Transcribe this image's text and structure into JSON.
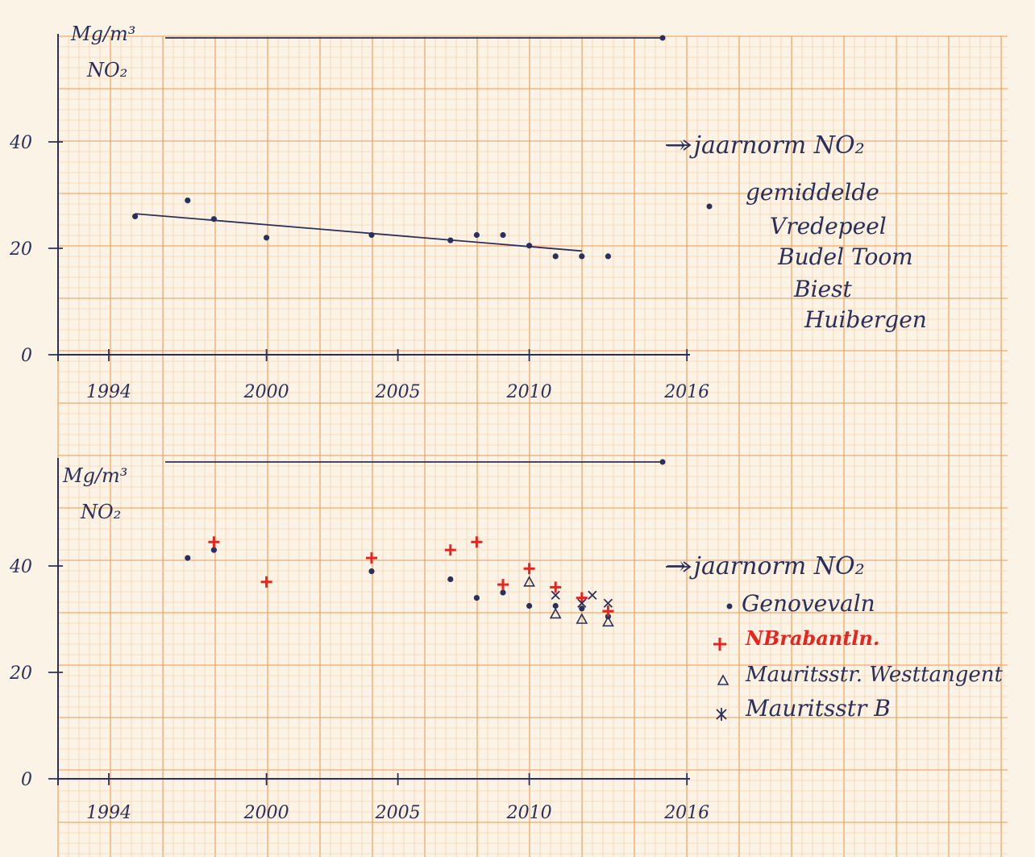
{
  "colors": {
    "paper": "#fbf3e6",
    "grid_minor": "#f6c99a",
    "grid_major": "#ef9a4d",
    "ink": "#2b2f5a",
    "red": "#e8241f"
  },
  "chart_data": [
    {
      "type": "scatter",
      "unit_label": "Mg/m³",
      "quantity_label": "NO₂",
      "x_ticks": [
        "1994",
        "2000",
        "2005",
        "2010",
        "2016"
      ],
      "y_ticks": [
        "0",
        "20",
        "40"
      ],
      "xlim": [
        1992,
        2016
      ],
      "ylim": [
        0,
        60
      ],
      "norm": {
        "value": 60,
        "label": "→ jaarnorm NO₂"
      },
      "legend_lines": [
        "gemiddelde",
        "Vredepeel",
        "Budel Toom",
        "Biest",
        "Huibergen"
      ],
      "series": [
        {
          "marker": "dot",
          "points": [
            {
              "x": 1995,
              "y": 26
            },
            {
              "x": 1997,
              "y": 29
            },
            {
              "x": 1998,
              "y": 25.5
            },
            {
              "x": 2000,
              "y": 22
            },
            {
              "x": 2004,
              "y": 22.5
            },
            {
              "x": 2007,
              "y": 21.5
            },
            {
              "x": 2008,
              "y": 22.5
            },
            {
              "x": 2009,
              "y": 22.5
            },
            {
              "x": 2010,
              "y": 20.5
            },
            {
              "x": 2011,
              "y": 18.5
            },
            {
              "x": 2012,
              "y": 18.5
            },
            {
              "x": 2013,
              "y": 18.5
            }
          ]
        }
      ],
      "trendline": [
        {
          "x": 1995,
          "y": 26.5
        },
        {
          "x": 2012,
          "y": 19.5
        }
      ]
    },
    {
      "type": "scatter",
      "unit_label": "Mg/m³",
      "quantity_label": "NO₂",
      "x_ticks": [
        "1994",
        "2000",
        "2005",
        "2010",
        "2016"
      ],
      "y_ticks": [
        "0",
        "20",
        "40"
      ],
      "xlim": [
        1992,
        2016
      ],
      "ylim": [
        0,
        60
      ],
      "norm": {
        "value": 60,
        "label": "→ jaarnorm NO₂"
      },
      "series": [
        {
          "name": "Genovevaln",
          "marker": "dot",
          "points": [
            {
              "x": 1997,
              "y": 41.5
            },
            {
              "x": 1998,
              "y": 43
            },
            {
              "x": 2004,
              "y": 39
            },
            {
              "x": 2007,
              "y": 37.5
            },
            {
              "x": 2008,
              "y": 34
            },
            {
              "x": 2009,
              "y": 35
            },
            {
              "x": 2010,
              "y": 32.5
            },
            {
              "x": 2011,
              "y": 32.5
            },
            {
              "x": 2012,
              "y": 32
            },
            {
              "x": 2013,
              "y": 30.5
            }
          ]
        },
        {
          "name": "NBrabantln.",
          "marker": "plus",
          "points": [
            {
              "x": 1998,
              "y": 44.5
            },
            {
              "x": 2000,
              "y": 37
            },
            {
              "x": 2004,
              "y": 41.5
            },
            {
              "x": 2007,
              "y": 43
            },
            {
              "x": 2008,
              "y": 44.5
            },
            {
              "x": 2009,
              "y": 36.5
            },
            {
              "x": 2010,
              "y": 39.5
            },
            {
              "x": 2011,
              "y": 36
            },
            {
              "x": 2012,
              "y": 34
            },
            {
              "x": 2013,
              "y": 31.5
            }
          ]
        },
        {
          "name": "Mauritsstr. Westtangent",
          "marker": "triangle",
          "points": [
            {
              "x": 2010,
              "y": 37
            },
            {
              "x": 2011,
              "y": 31
            },
            {
              "x": 2012,
              "y": 30
            },
            {
              "x": 2013,
              "y": 29.5
            }
          ]
        },
        {
          "name": "Mauritsstr B",
          "marker": "cross",
          "points": [
            {
              "x": 2011,
              "y": 34.5
            },
            {
              "x": 2012,
              "y": 33
            },
            {
              "x": 2012.4,
              "y": 34.5
            },
            {
              "x": 2013,
              "y": 33
            }
          ]
        }
      ]
    }
  ]
}
